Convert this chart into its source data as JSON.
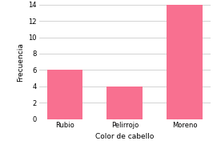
{
  "categories": [
    "Rubio",
    "Pelirrojo",
    "Moreno"
  ],
  "values": [
    6,
    4,
    14
  ],
  "bar_color": "#f87090",
  "title": "",
  "xlabel": "Color de cabello",
  "ylabel": "Frecuencia",
  "ylim": [
    0,
    14
  ],
  "yticks": [
    0,
    2,
    4,
    6,
    8,
    10,
    12,
    14
  ],
  "background_color": "#ffffff",
  "grid_color": "#cccccc",
  "xlabel_fontsize": 6.5,
  "ylabel_fontsize": 6.5,
  "tick_fontsize": 6
}
